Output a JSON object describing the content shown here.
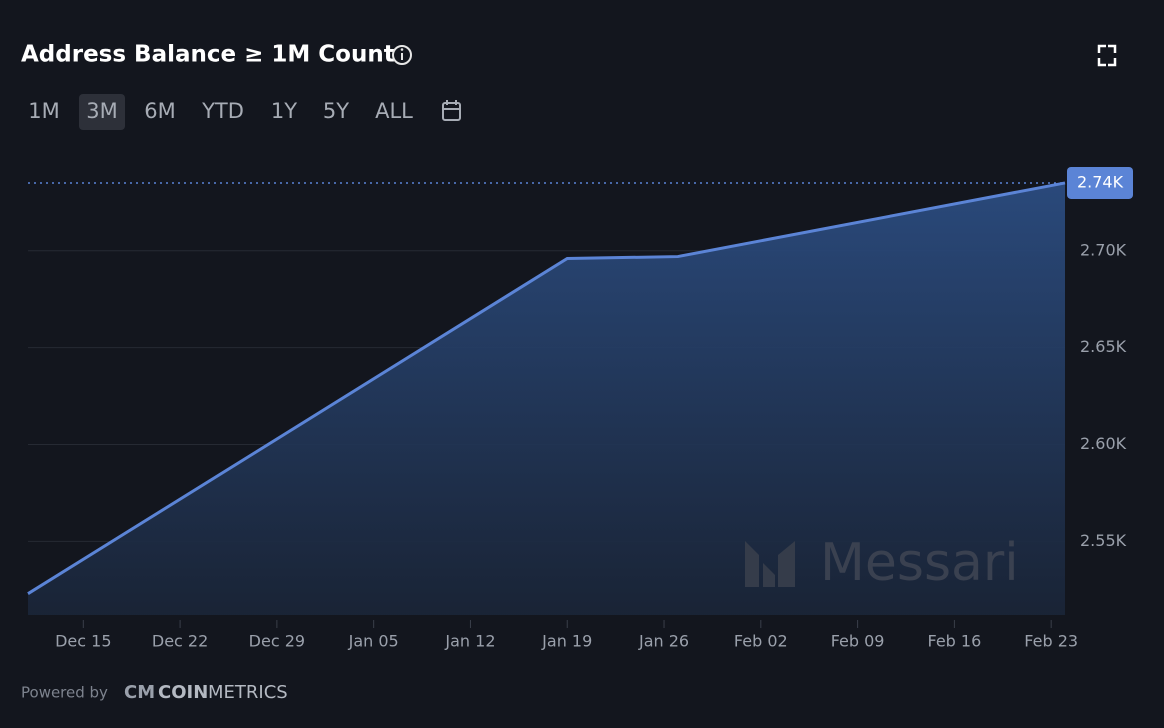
{
  "chart_data": {
    "type": "area",
    "title": "Address Balance ≥ 1M Count",
    "ranges": [
      "1M",
      "3M",
      "6M",
      "YTD",
      "1Y",
      "5Y",
      "ALL"
    ],
    "selected_range": "3M",
    "x": [
      "Dec 11",
      "Jan 19",
      "Jan 27",
      "Feb 24"
    ],
    "values": [
      2523,
      2696,
      2697,
      2735
    ],
    "value_labels": [
      null,
      null,
      null,
      "2.74K"
    ],
    "color": "#5b84d6",
    "xlim": [
      "Dec 11",
      "Feb 24"
    ],
    "xticks": [
      "Dec 15",
      "Dec 22",
      "Dec 29",
      "Jan 05",
      "Jan 12",
      "Jan 19",
      "Jan 26",
      "Feb 02",
      "Feb 09",
      "Feb 16",
      "Feb 23"
    ],
    "ylim": [
      2512,
      2752
    ],
    "yticks": [
      {
        "value": 2550,
        "label": "2.55K"
      },
      {
        "value": 2600,
        "label": "2.60K"
      },
      {
        "value": 2650,
        "label": "2.65K"
      },
      {
        "value": 2700,
        "label": "2.70K"
      }
    ],
    "grid": true,
    "watermark": "Messari",
    "footer": {
      "powered_by": "Powered by",
      "brand_bold": "COIN",
      "brand_light": "METRICS"
    }
  }
}
